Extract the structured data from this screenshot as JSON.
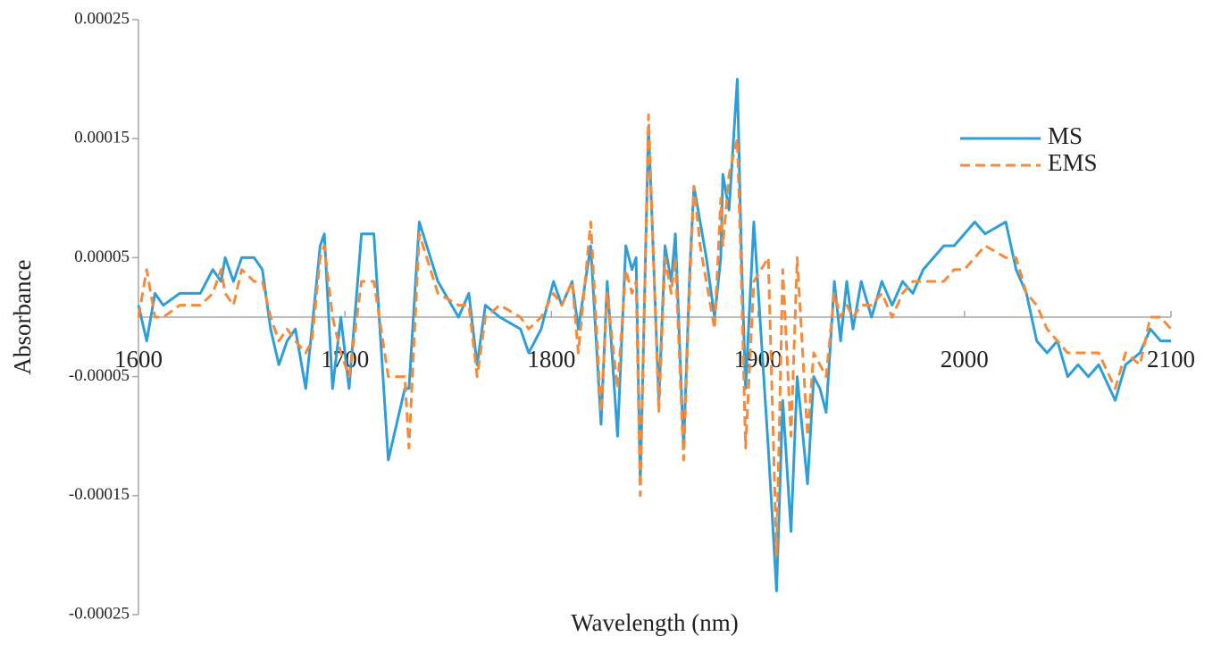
{
  "chart_data": {
    "type": "line",
    "x_label": "Wavelength (nm)",
    "y_label": "Absorbance",
    "x": [
      1600,
      1604,
      1608,
      1612,
      1620,
      1630,
      1636,
      1640,
      1642,
      1646,
      1650,
      1656,
      1660,
      1664,
      1668,
      1672,
      1676,
      1681,
      1684,
      1688,
      1690,
      1694,
      1698,
      1702,
      1708,
      1714,
      1721,
      1729,
      1731,
      1736,
      1745,
      1755,
      1760,
      1764,
      1768,
      1775,
      1785,
      1789,
      1795,
      1801,
      1805,
      1810,
      1813,
      1819,
      1824,
      1827,
      1832,
      1836,
      1839,
      1841,
      1843,
      1847,
      1852,
      1855,
      1858,
      1860,
      1864,
      1867,
      1869,
      1872,
      1875,
      1879,
      1882,
      1883,
      1886,
      1890,
      1892,
      1894,
      1898,
      1905,
      1909,
      1912,
      1916,
      1919,
      1924,
      1927,
      1930,
      1933,
      1937,
      1940,
      1943,
      1946,
      1950,
      1955,
      1960,
      1965,
      1970,
      1975,
      1980,
      1990,
      1995,
      2000,
      2005,
      2010,
      2020,
      2025,
      2030,
      2035,
      2040,
      2045,
      2050,
      2055,
      2060,
      2065,
      2073,
      2078,
      2085,
      2090,
      2095,
      2100
    ],
    "series": [
      {
        "name": "MS",
        "color": "#2e9fd6",
        "linestyle": "solid",
        "values": [
          1e-05,
          -2e-05,
          2e-05,
          1e-05,
          2e-05,
          2e-05,
          4e-05,
          3e-05,
          5e-05,
          3e-05,
          5e-05,
          5e-05,
          4e-05,
          -1e-05,
          -4e-05,
          -2e-05,
          -1e-05,
          -6e-05,
          -1e-05,
          6e-05,
          7e-05,
          -6e-05,
          0,
          -6e-05,
          7e-05,
          7e-05,
          -0.00012,
          -6e-05,
          -6e-05,
          8e-05,
          3e-05,
          0,
          2e-05,
          -4e-05,
          1e-05,
          0,
          -1e-05,
          -3e-05,
          -1e-05,
          3e-05,
          1e-05,
          3e-05,
          -1e-05,
          6e-05,
          -9e-05,
          3e-05,
          -0.0001,
          6e-05,
          4e-05,
          5e-05,
          -0.00014,
          0.00016,
          -7e-05,
          6e-05,
          3e-05,
          7e-05,
          -0.00011,
          4e-05,
          0.00011,
          8e-05,
          5e-05,
          0,
          5e-05,
          0.00012,
          9e-05,
          0.0002,
          5e-05,
          -6e-05,
          8e-05,
          -0.00011,
          -0.00023,
          -7e-05,
          -0.00018,
          -5e-05,
          -0.00014,
          -5e-05,
          -6e-05,
          -8e-05,
          3e-05,
          -2e-05,
          3e-05,
          -1e-05,
          3e-05,
          0,
          3e-05,
          1e-05,
          3e-05,
          2e-05,
          4e-05,
          6e-05,
          6e-05,
          7e-05,
          8e-05,
          7e-05,
          8e-05,
          4e-05,
          2e-05,
          -2e-05,
          -3e-05,
          -2e-05,
          -5e-05,
          -4e-05,
          -5e-05,
          -4e-05,
          -7e-05,
          -4e-05,
          -3e-05,
          -1e-05,
          -2e-05,
          -2e-05
        ]
      },
      {
        "name": "EMS",
        "color": "#f58a3b",
        "linestyle": "dashed",
        "values": [
          0,
          4e-05,
          0,
          0,
          1e-05,
          1e-05,
          2e-05,
          4e-05,
          2e-05,
          1e-05,
          4e-05,
          3e-05,
          3e-05,
          0,
          -2e-05,
          -1e-05,
          -2e-05,
          -3e-05,
          -2e-05,
          5e-05,
          6e-05,
          0,
          -3e-05,
          -5e-05,
          3e-05,
          3e-05,
          -5e-05,
          -5e-05,
          -0.00011,
          7e-05,
          2e-05,
          1e-05,
          1e-05,
          -5e-05,
          0,
          1e-05,
          0,
          -1e-05,
          0,
          2e-05,
          1e-05,
          3e-05,
          -3e-05,
          8e-05,
          -8e-05,
          2e-05,
          -6e-05,
          4e-05,
          2e-05,
          3e-05,
          -0.00015,
          0.00017,
          -8e-05,
          5e-05,
          2e-05,
          5e-05,
          -0.00012,
          3e-05,
          0.00011,
          6e-05,
          3e-05,
          -1e-05,
          0.0001,
          6e-05,
          0.00012,
          0.00015,
          3e-05,
          -0.00011,
          3e-05,
          5e-05,
          -0.0002,
          4e-05,
          -0.0001,
          5e-05,
          -0.0001,
          -3e-05,
          -4e-05,
          -5e-05,
          2e-05,
          0,
          1e-05,
          0,
          1e-05,
          1e-05,
          2e-05,
          0,
          2e-05,
          3e-05,
          3e-05,
          3e-05,
          4e-05,
          4e-05,
          5e-05,
          6e-05,
          5e-05,
          5e-05,
          2e-05,
          1e-05,
          -1e-05,
          -2e-05,
          -3e-05,
          -3e-05,
          -3e-05,
          -3e-05,
          -6e-05,
          -3e-05,
          -4e-05,
          0,
          0,
          -1e-05
        ]
      }
    ],
    "xlim": [
      1600,
      2100
    ],
    "xticks": [
      1600,
      1700,
      1800,
      1900,
      2000,
      2100
    ],
    "ylim": [
      -0.00025,
      0.00025
    ],
    "yticks": [
      -0.00025,
      -0.00015,
      -5e-05,
      5e-05,
      0.00015,
      0.00025
    ],
    "legend": "upper right"
  }
}
